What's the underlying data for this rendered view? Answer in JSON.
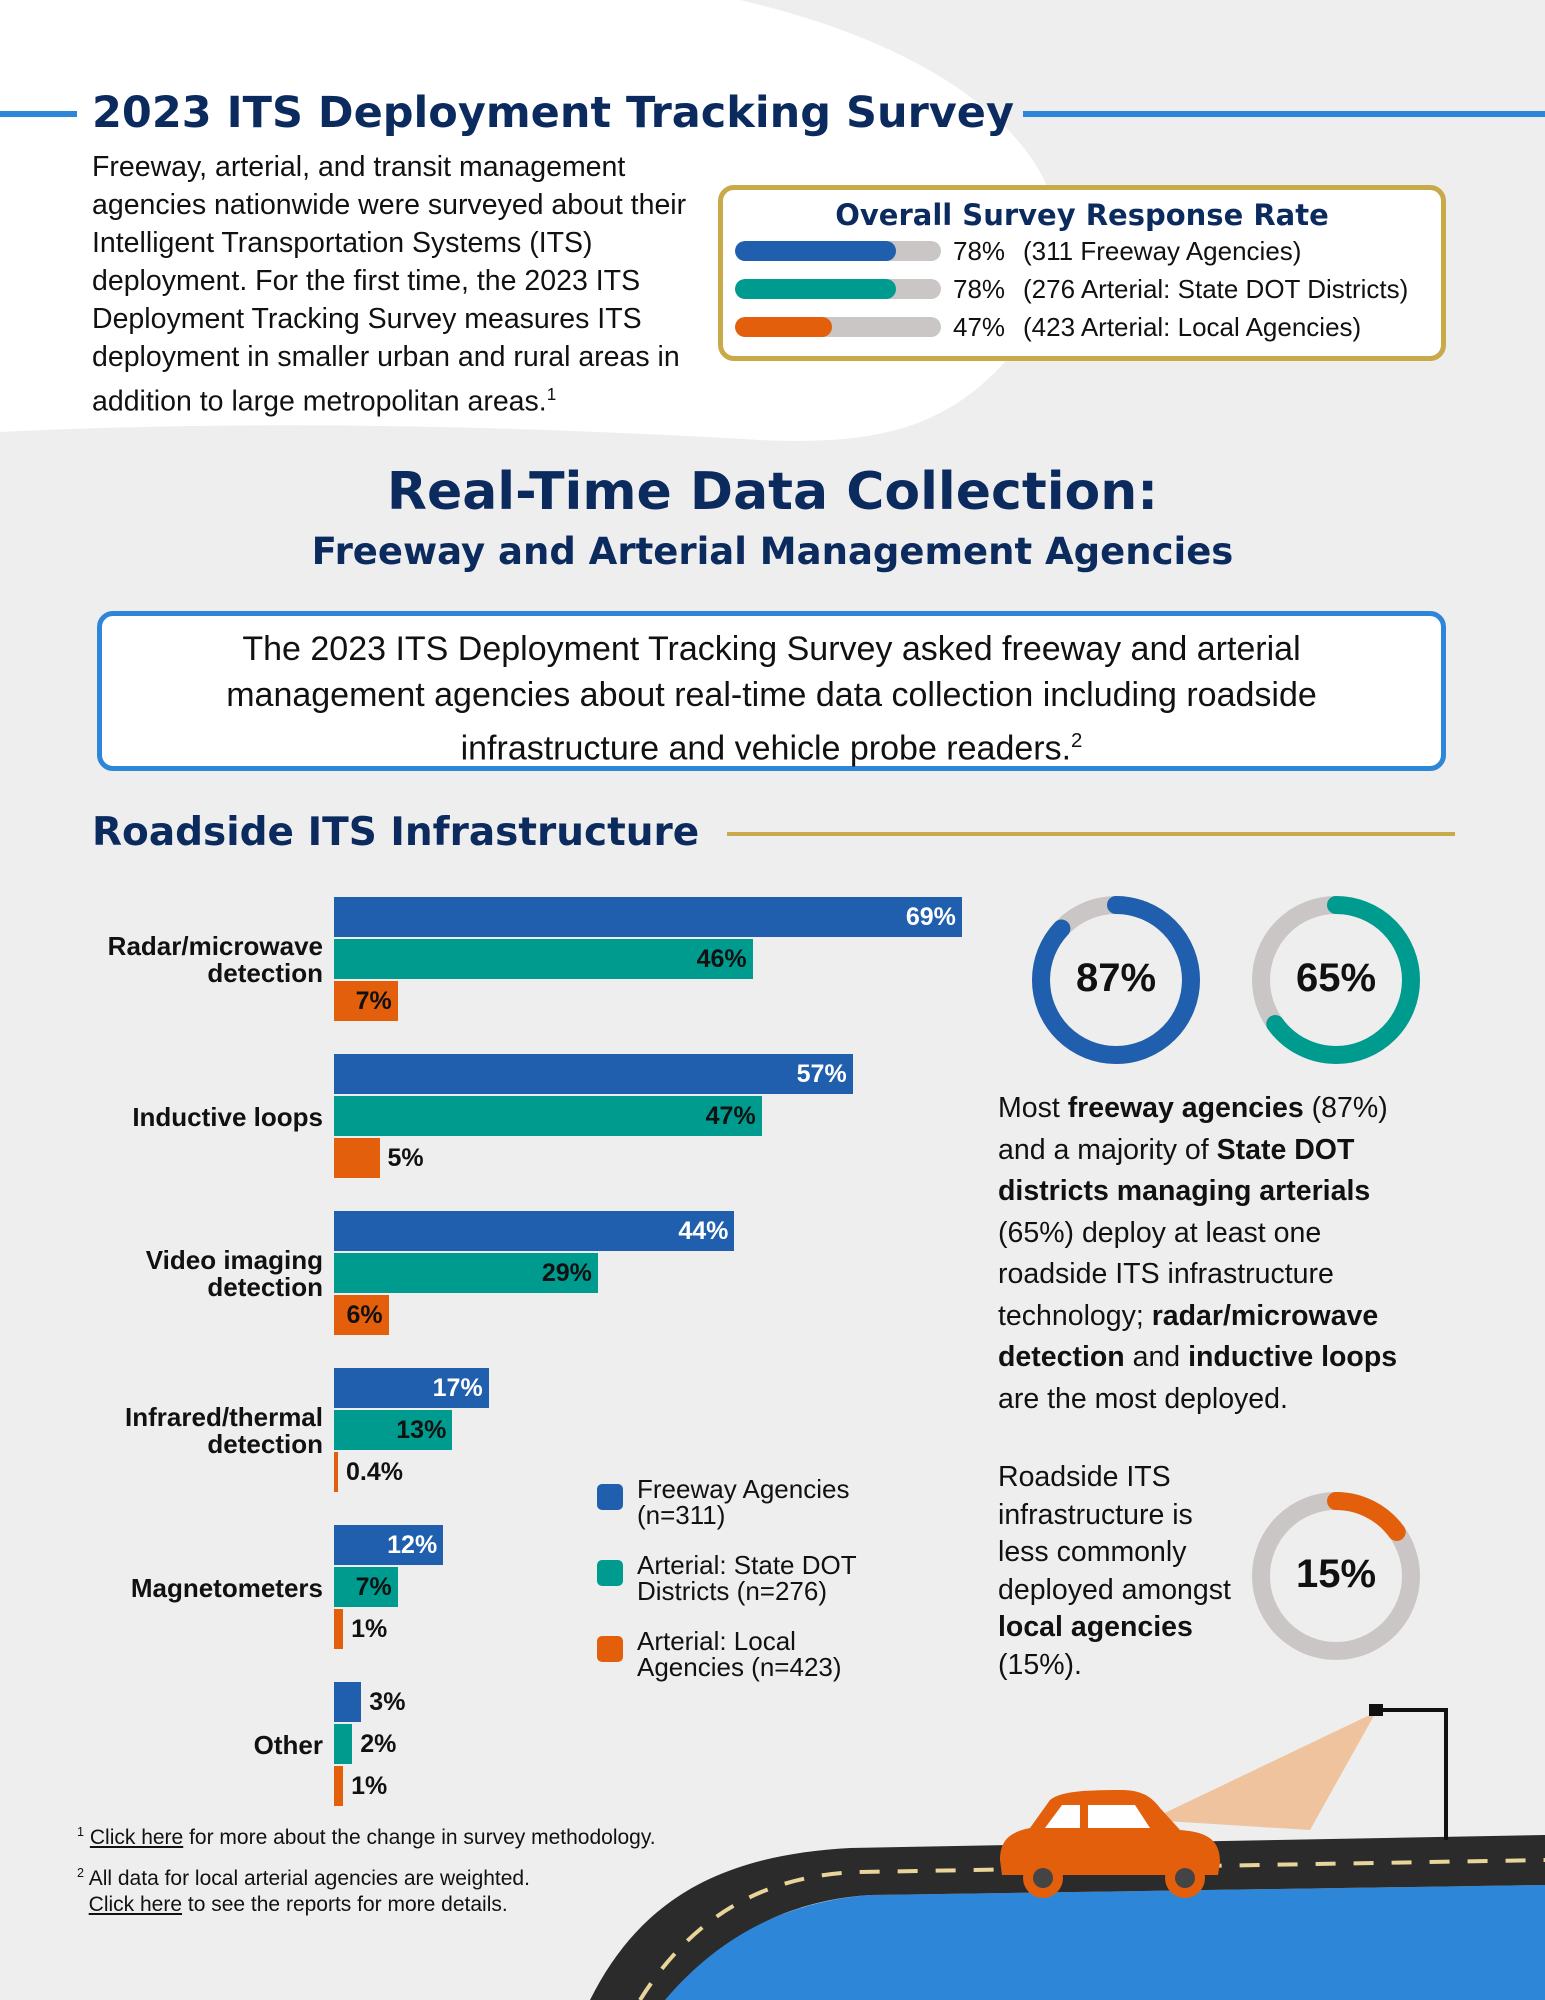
{
  "header": {
    "title": "2023 ITS Deployment Tracking Survey",
    "intro": "Freeway, arterial, and transit management agencies nationwide were surveyed about their Intelligent Transportation Systems (ITS) deployment. For the first time, the 2023 ITS Deployment Tracking Survey measures ITS deployment in smaller urban and rural areas in addition to large metropolitan areas.",
    "intro_sup": "1"
  },
  "response": {
    "title": "Overall Survey Response Rate",
    "rows": [
      {
        "pct": "78%",
        "value": 78,
        "label": "(311 Freeway Agencies)",
        "color": "#1f5fae"
      },
      {
        "pct": "78%",
        "value": 78,
        "label": "(276 Arterial: State DOT Districts)",
        "color": "#009b8f"
      },
      {
        "pct": "47%",
        "value": 47,
        "label": "(423 Arterial: Local Agencies)",
        "color": "#e35f0b"
      }
    ]
  },
  "section": {
    "title": "Real-Time Data Collection:",
    "subtitle": "Freeway and Arterial Management Agencies",
    "description": "The 2023 ITS Deployment Tracking Survey asked freeway and arterial management agencies about real-time data collection including roadside infrastructure and vehicle probe readers.",
    "description_sup": "2"
  },
  "chart_data": {
    "type": "bar",
    "orientation": "horizontal",
    "title": "Roadside ITS Infrastructure",
    "categories": [
      "Radar/microwave detection",
      "Inductive loops",
      "Video imaging detection",
      "Infrared/thermal detection",
      "Magnetometers",
      "Other"
    ],
    "series": [
      {
        "name": "Freeway Agencies (n=311)",
        "color": "#1f5fae",
        "values": [
          69,
          57,
          44,
          17,
          12,
          3
        ]
      },
      {
        "name": "Arterial: State DOT Districts (n=276)",
        "color": "#009b8f",
        "values": [
          46,
          47,
          29,
          13,
          7,
          2
        ]
      },
      {
        "name": "Arterial: Local Agencies (n=423)",
        "color": "#e35f0b",
        "values": [
          7,
          5,
          6,
          0.4,
          1,
          1
        ]
      }
    ],
    "xlim": [
      0,
      100
    ],
    "legend": "bottom-right of bars",
    "unit": "%"
  },
  "donuts": [
    {
      "label": "87%",
      "value": 87,
      "color": "#1f5fae"
    },
    {
      "label": "65%",
      "value": 65,
      "color": "#009b8f"
    },
    {
      "label": "15%",
      "value": 15,
      "color": "#e35f0b"
    }
  ],
  "text1": {
    "a": "Most ",
    "b": "freeway agencies",
    "c": " (87%) and a majority of ",
    "d": "State DOT districts managing arterials",
    "e": " (65%) deploy at least one roadside ITS infrastructure technology; ",
    "f": "radar/microwave detection",
    "g": " and ",
    "h": "inductive loops",
    "i": " are the most deployed."
  },
  "text2": {
    "a": "Roadside ITS infrastructure is less commonly deployed amongst ",
    "b": "local agencies",
    "c": " (15%)."
  },
  "footnotes": {
    "n1": "1",
    "link1": "Click here",
    "t1": " for more about the change in survey methodology.",
    "n2": "2",
    "t2": "All data for local arterial agencies are weighted.",
    "link2": "Click here",
    "t3": " to see the reports for more details."
  }
}
